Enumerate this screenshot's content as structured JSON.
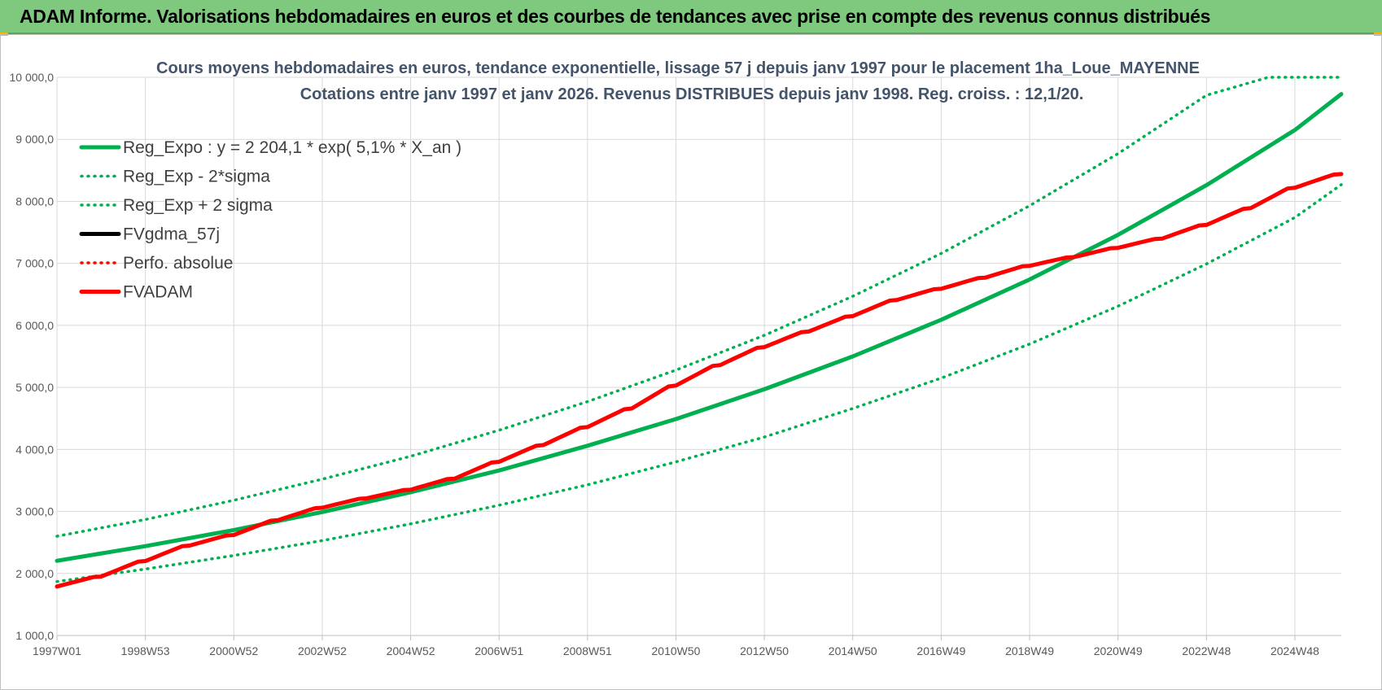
{
  "header": {
    "title": "ADAM Informe. Valorisations hebdomadaires en euros et des courbes de tendances avec prise en compte des revenus connus distribués"
  },
  "chart_data": {
    "type": "line",
    "title": "Cours moyens hebdomadaires en euros, tendance exponentielle, lissage 57 j depuis janv 1997 pour le placement 1ha_Loue_MAYENNE",
    "subtitle": "Cotations entre janv 1997 et janv 2026. Revenus DISTRIBUES depuis janv 1998. Reg. croiss. : 12,1/20.",
    "xlabel": "",
    "ylabel": "",
    "ylim": [
      1000,
      10000
    ],
    "y_ticks": [
      "1 000,0",
      "2 000,0",
      "3 000,0",
      "4 000,0",
      "5 000,0",
      "6 000,0",
      "7 000,0",
      "8 000,0",
      "9 000,0",
      "10 000,0"
    ],
    "y_tick_values": [
      1000,
      2000,
      3000,
      4000,
      5000,
      6000,
      7000,
      8000,
      9000,
      10000
    ],
    "xlim": [
      1997.0,
      2026.05
    ],
    "x_ticks": [
      "1997W01",
      "1998W53",
      "2000W52",
      "2002W52",
      "2004W52",
      "2006W51",
      "2008W51",
      "2010W50",
      "2012W50",
      "2014W50",
      "2016W49",
      "2018W49",
      "2020W49",
      "2022W48",
      "2024W48"
    ],
    "x_tick_values": [
      1997.0,
      1999.0,
      2001.0,
      2003.0,
      2005.0,
      2007.0,
      2009.0,
      2011.0,
      2013.0,
      2015.0,
      2017.0,
      2019.0,
      2021.0,
      2023.0,
      2025.0
    ],
    "grid": true,
    "legend_position": "top-left",
    "legend": [
      {
        "name": "Reg_Expo : y = 2 204,1 * exp( 5,1% *  X_an )",
        "color": "#00b050",
        "style": "solid"
      },
      {
        "name": "Reg_Exp - 2*sigma",
        "color": "#00b050",
        "style": "dotted"
      },
      {
        "name": "Reg_Exp + 2 sigma",
        "color": "#00b050",
        "style": "dotted"
      },
      {
        "name": "FVgdma_57j",
        "color": "#000000",
        "style": "solid"
      },
      {
        "name": "Perfo. absolue",
        "color": "#ff0000",
        "style": "dotted"
      },
      {
        "name": "FVADAM",
        "color": "#ff0000",
        "style": "solid"
      }
    ],
    "series": [
      {
        "name": "Reg_Expo",
        "x": [
          1997,
          1999,
          2001,
          2003,
          2005,
          2007,
          2009,
          2011,
          2013,
          2015,
          2017,
          2019,
          2021,
          2023,
          2025,
          2026.05
        ],
        "values": [
          2204,
          2440,
          2700,
          2990,
          3310,
          3660,
          4060,
          4490,
          4970,
          5500,
          6090,
          6740,
          7460,
          8260,
          9150,
          9730
        ]
      },
      {
        "name": "Reg_Exp - 2*sigma",
        "x": [
          1997,
          1999,
          2001,
          2003,
          2005,
          2007,
          2009,
          2011,
          2013,
          2015,
          2017,
          2019,
          2021,
          2023,
          2025,
          2026.05
        ],
        "values": [
          1870,
          2070,
          2290,
          2530,
          2800,
          3100,
          3430,
          3800,
          4200,
          4660,
          5150,
          5700,
          6310,
          6990,
          7740,
          8270
        ]
      },
      {
        "name": "Reg_Exp + 2 sigma",
        "x": [
          1997,
          1999,
          2001,
          2003,
          2005,
          2007,
          2009,
          2011,
          2013,
          2015,
          2017,
          2019,
          2021,
          2023,
          2024.4,
          2026.05
        ],
        "values": [
          2600,
          2870,
          3180,
          3520,
          3890,
          4310,
          4770,
          5280,
          5840,
          6470,
          7160,
          7930,
          8770,
          9710,
          10000,
          10000
        ]
      },
      {
        "name": "FVgdma_57j",
        "x": [
          1997,
          1998,
          1999,
          2000,
          2001,
          2002,
          2003,
          2004,
          2005,
          2006,
          2007,
          2008,
          2009,
          2010,
          2011,
          2012,
          2013,
          2014,
          2015,
          2016,
          2017,
          2018,
          2019,
          2020,
          2021,
          2022,
          2023,
          2024,
          2025,
          2026.05
        ],
        "values": [
          1790,
          1950,
          2200,
          2450,
          2620,
          2860,
          3060,
          3210,
          3350,
          3530,
          3800,
          4070,
          4360,
          4660,
          5030,
          5360,
          5650,
          5900,
          6150,
          6410,
          6590,
          6770,
          6960,
          7100,
          7250,
          7400,
          7620,
          7890,
          8220,
          8440
        ]
      },
      {
        "name": "Perfo. absolue",
        "x": [
          1997,
          1998,
          1999,
          2000,
          2001,
          2002,
          2003,
          2004,
          2005,
          2006,
          2007,
          2008,
          2009,
          2010,
          2011,
          2012,
          2013,
          2014,
          2015,
          2016,
          2017,
          2018,
          2019,
          2020,
          2021,
          2022,
          2023,
          2024,
          2025,
          2026.05
        ],
        "values": [
          1790,
          1950,
          2200,
          2450,
          2620,
          2860,
          3060,
          3210,
          3350,
          3530,
          3800,
          4070,
          4360,
          4660,
          5030,
          5360,
          5650,
          5900,
          6150,
          6410,
          6590,
          6770,
          6960,
          7100,
          7250,
          7400,
          7620,
          7890,
          8220,
          8440
        ]
      },
      {
        "name": "FVADAM",
        "x": [
          1997,
          1998,
          1999,
          2000,
          2001,
          2002,
          2003,
          2004,
          2005,
          2006,
          2007,
          2008,
          2009,
          2010,
          2011,
          2012,
          2013,
          2014,
          2015,
          2016,
          2017,
          2018,
          2019,
          2020,
          2021,
          2022,
          2023,
          2024,
          2025,
          2026.05
        ],
        "values": [
          1790,
          1950,
          2200,
          2450,
          2620,
          2860,
          3060,
          3210,
          3350,
          3530,
          3800,
          4070,
          4360,
          4660,
          5030,
          5360,
          5650,
          5900,
          6150,
          6410,
          6590,
          6770,
          6960,
          7100,
          7250,
          7400,
          7620,
          7890,
          8220,
          8440
        ]
      }
    ]
  }
}
